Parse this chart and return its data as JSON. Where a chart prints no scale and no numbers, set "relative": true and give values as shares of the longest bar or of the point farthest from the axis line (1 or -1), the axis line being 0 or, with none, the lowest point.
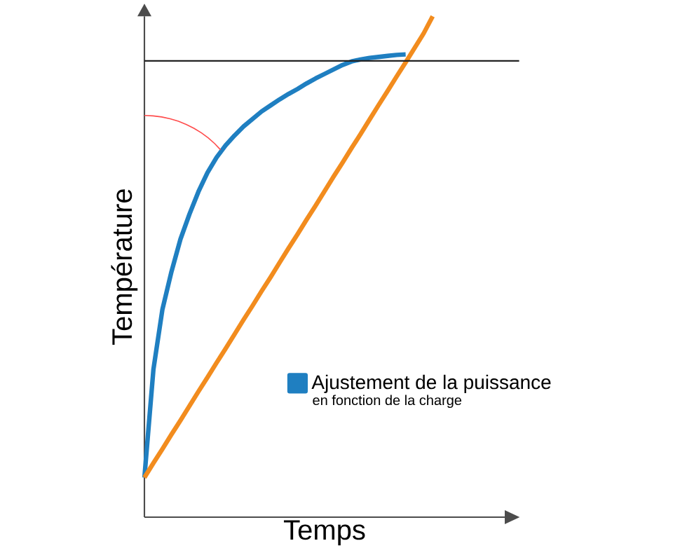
{
  "chart_data": {
    "type": "line",
    "relative": true,
    "xlabel": "Temps",
    "ylabel": "Température",
    "legend": "bottom right",
    "marker": "none",
    "line_style": "solid",
    "categories": [
      null,
      null,
      null,
      null,
      null,
      null,
      null,
      null,
      null,
      null,
      null,
      null,
      null,
      null,
      null,
      null,
      null,
      null,
      null,
      null,
      null,
      null,
      null,
      null,
      null,
      null,
      null,
      null,
      null,
      null,
      null,
      null,
      null,
      null,
      null,
      null,
      null,
      null,
      null,
      null,
      null
    ],
    "series": [
      {
        "name": "Ajustement de la puissance",
        "color": "#1f7fc1",
        "values": [
          0.079,
          0.295,
          0.415,
          0.49,
          0.555,
          0.605,
          0.65,
          0.688,
          0.718,
          0.742,
          0.762,
          0.78,
          0.795,
          0.81,
          0.822,
          0.834,
          0.845,
          0.855,
          0.866,
          0.876,
          0.885,
          0.894,
          0.903,
          0.91,
          0.914,
          0.917,
          0.919,
          0.921,
          0.923,
          0.924,
          null,
          null,
          null,
          null,
          null,
          null,
          null,
          null,
          null,
          null,
          null
        ]
      },
      {
        "color": "#f28c1e",
        "values": [
          0.079,
          0.108,
          0.136,
          0.165,
          0.193,
          0.222,
          0.251,
          0.279,
          0.308,
          0.336,
          0.365,
          0.394,
          0.422,
          0.451,
          0.479,
          0.508,
          0.537,
          0.565,
          0.594,
          0.622,
          0.651,
          0.68,
          0.708,
          0.737,
          0.765,
          0.794,
          0.823,
          0.851,
          0.88,
          0.908,
          0.937,
          0.966,
          1.0,
          null,
          null,
          null,
          null,
          null,
          null,
          null,
          null
        ]
      }
    ],
    "ref_lines": [
      {
        "axis": "y",
        "value": 0.911,
        "color": "#222222"
      }
    ],
    "annotations": [
      "en fonction de la charge"
    ]
  }
}
